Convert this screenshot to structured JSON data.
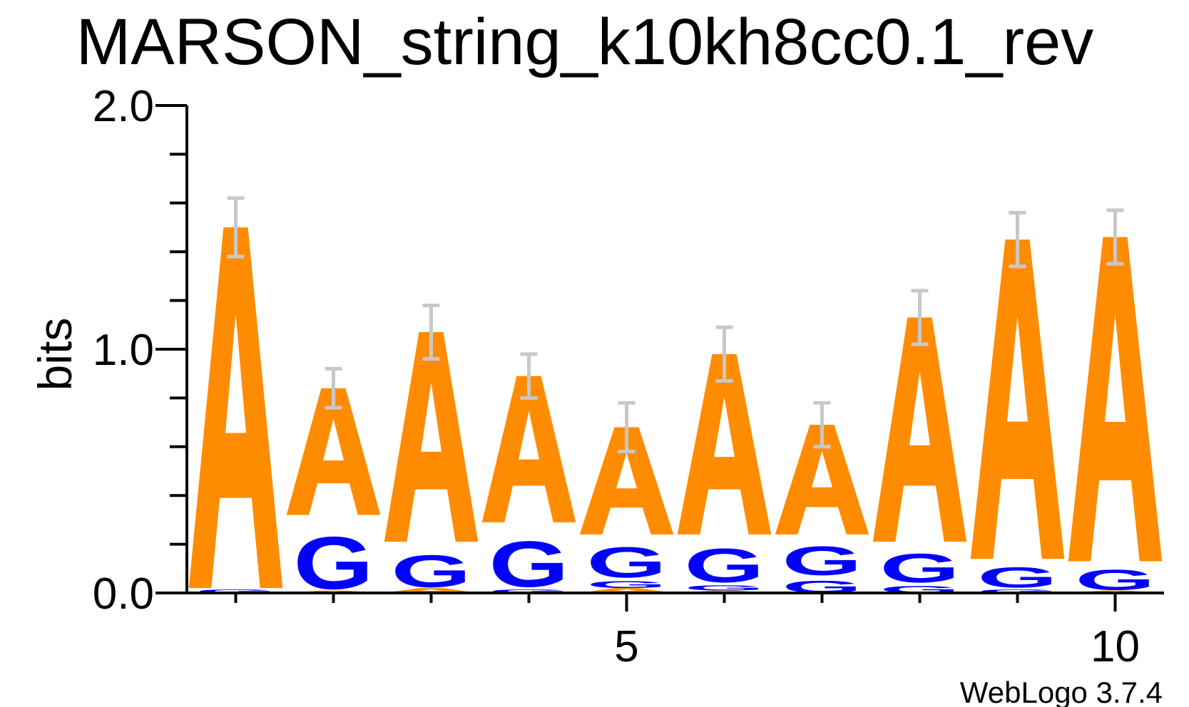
{
  "chart_data": {
    "type": "sequence-logo",
    "title": "MARSON_string_k10kh8cc0.1_rev",
    "ylabel": "bits",
    "xlabel": "",
    "ylim": [
      0,
      2.0
    ],
    "y_ticks_major": [
      "0.0",
      "1.0",
      "2.0"
    ],
    "y_tick_values": [
      0.0,
      1.0,
      2.0
    ],
    "y_minor_step": 0.2,
    "x_tick_labels": [
      "5",
      "10"
    ],
    "x_tick_positions": [
      5,
      10
    ],
    "footer": "WebLogo 3.7.4",
    "colors": {
      "A": "#ff8c00",
      "G": "#0000ff",
      "error_bar": "#c8c8c8",
      "axis": "#000000"
    },
    "positions": [
      {
        "pos": 1,
        "stack": [
          {
            "letter": "G",
            "bits": 0.02
          },
          {
            "letter": "A",
            "bits": 1.48
          }
        ],
        "error": 0.12
      },
      {
        "pos": 2,
        "stack": [
          {
            "letter": "A",
            "bits": 0.01
          },
          {
            "letter": "G",
            "bits": 0.31
          },
          {
            "letter": "A",
            "bits": 0.52
          }
        ],
        "error": 0.08
      },
      {
        "pos": 3,
        "stack": [
          {
            "letter": "A",
            "bits": 0.02
          },
          {
            "letter": "G",
            "bits": 0.19
          },
          {
            "letter": "A",
            "bits": 0.86
          }
        ],
        "error": 0.11
      },
      {
        "pos": 4,
        "stack": [
          {
            "letter": "G",
            "bits": 0.02
          },
          {
            "letter": "G",
            "bits": 0.27
          },
          {
            "letter": "A",
            "bits": 0.6
          }
        ],
        "error": 0.09
      },
      {
        "pos": 5,
        "stack": [
          {
            "letter": "A",
            "bits": 0.02
          },
          {
            "letter": "G",
            "bits": 0.04
          },
          {
            "letter": "G",
            "bits": 0.18
          },
          {
            "letter": "A",
            "bits": 0.44
          }
        ],
        "error": 0.1
      },
      {
        "pos": 6,
        "stack": [
          {
            "letter": "A",
            "bits": 0.01
          },
          {
            "letter": "G",
            "bits": 0.03
          },
          {
            "letter": "G",
            "bits": 0.2
          },
          {
            "letter": "A",
            "bits": 0.74
          }
        ],
        "error": 0.11
      },
      {
        "pos": 7,
        "stack": [
          {
            "letter": "G",
            "bits": 0.07
          },
          {
            "letter": "G",
            "bits": 0.17
          },
          {
            "letter": "A",
            "bits": 0.45
          }
        ],
        "error": 0.09
      },
      {
        "pos": 8,
        "stack": [
          {
            "letter": "G",
            "bits": 0.04
          },
          {
            "letter": "G",
            "bits": 0.17
          },
          {
            "letter": "A",
            "bits": 0.92
          }
        ],
        "error": 0.11
      },
      {
        "pos": 9,
        "stack": [
          {
            "letter": "G",
            "bits": 0.02
          },
          {
            "letter": "G",
            "bits": 0.12
          },
          {
            "letter": "A",
            "bits": 1.31
          }
        ],
        "error": 0.11
      },
      {
        "pos": 10,
        "stack": [
          {
            "letter": "A",
            "bits": 0.01
          },
          {
            "letter": "G",
            "bits": 0.12
          },
          {
            "letter": "A",
            "bits": 1.33
          }
        ],
        "error": 0.11
      }
    ]
  }
}
